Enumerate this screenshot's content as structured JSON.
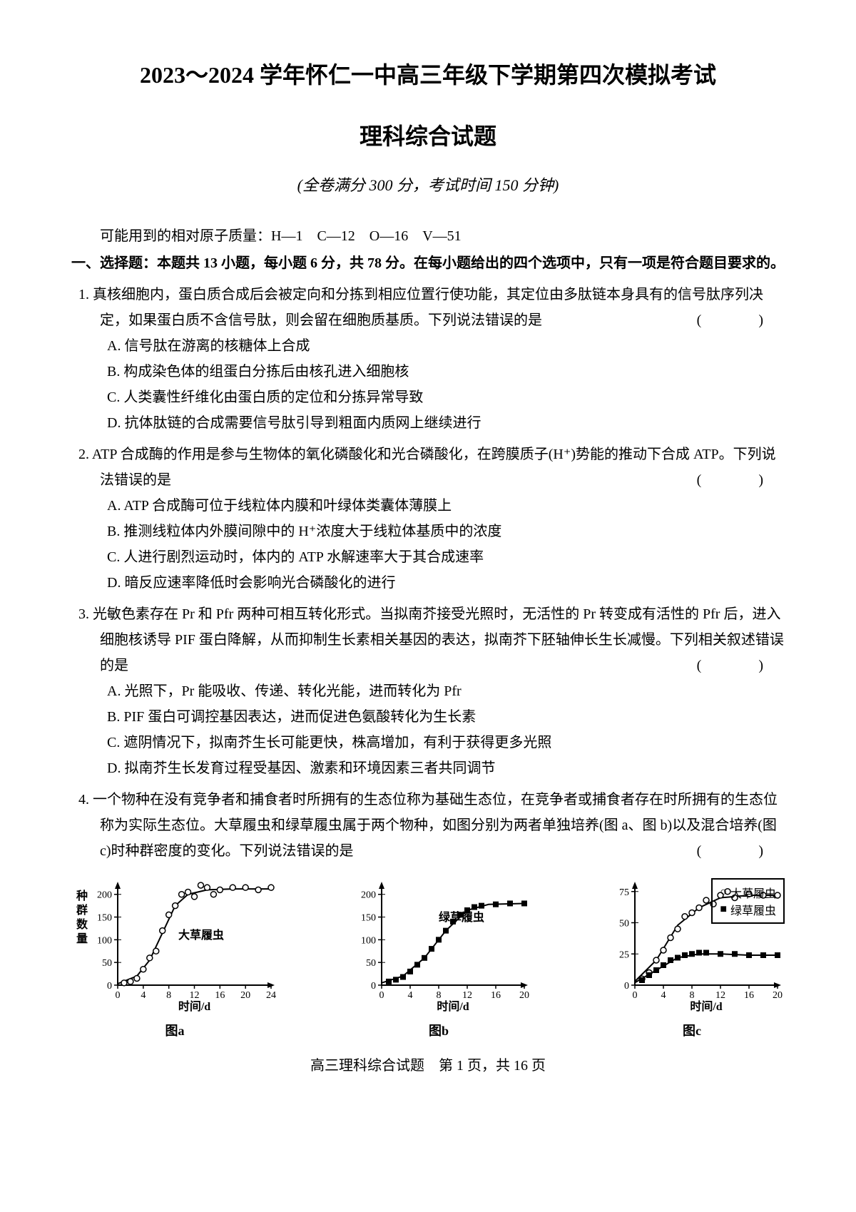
{
  "header": {
    "title": "2023～2024 学年怀仁一中高三年级下学期第四次模拟考试",
    "subtitle": "理科综合试题",
    "info": "(全卷满分 300 分，考试时间 150 分钟)"
  },
  "atomic_mass": "可能用到的相对原子质量：H—1　C—12　O—16　V—51",
  "section_header": "一、选择题：本题共 13 小题，每小题 6 分，共 78 分。在每小题给出的四个选项中，只有一项是符合题目要求的。",
  "questions": [
    {
      "num": "1.",
      "stem": "真核细胞内，蛋白质合成后会被定向和分拣到相应位置行使功能，其定位由多肽链本身具有的信号肽序列决定，如果蛋白质不含信号肽，则会留在细胞质基质。下列说法错误的是",
      "has_paren": true,
      "options": [
        "A. 信号肽在游离的核糖体上合成",
        "B. 构成染色体的组蛋白分拣后由核孔进入细胞核",
        "C. 人类囊性纤维化由蛋白质的定位和分拣异常导致",
        "D. 抗体肽链的合成需要信号肽引导到粗面内质网上继续进行"
      ]
    },
    {
      "num": "2.",
      "stem": "ATP 合成酶的作用是参与生物体的氧化磷酸化和光合磷酸化，在跨膜质子(H⁺)势能的推动下合成 ATP。下列说法错误的是",
      "has_paren": true,
      "options": [
        "A. ATP 合成酶可位于线粒体内膜和叶绿体类囊体薄膜上",
        "B. 推测线粒体内外膜间隙中的 H⁺浓度大于线粒体基质中的浓度",
        "C. 人进行剧烈运动时，体内的 ATP 水解速率大于其合成速率",
        "D. 暗反应速率降低时会影响光合磷酸化的进行"
      ]
    },
    {
      "num": "3.",
      "stem": "光敏色素存在 Pr 和 Pfr 两种可相互转化形式。当拟南芥接受光照时，无活性的 Pr 转变成有活性的 Pfr 后，进入细胞核诱导 PIF 蛋白降解，从而抑制生长素相关基因的表达，拟南芥下胚轴伸长生长减慢。下列相关叙述错误的是",
      "has_paren": true,
      "options": [
        "A. 光照下，Pr 能吸收、传递、转化光能，进而转化为 Pfr",
        "B. PIF 蛋白可调控基因表达，进而促进色氨酸转化为生长素",
        "C. 遮阴情况下，拟南芥生长可能更快，株高增加，有利于获得更多光照",
        "D. 拟南芥生长发育过程受基因、激素和环境因素三者共同调节"
      ]
    },
    {
      "num": "4.",
      "stem": "一个物种在没有竞争者和捕食者时所拥有的生态位称为基础生态位，在竞争者或捕食者存在时所拥有的生态位称为实际生态位。大草履虫和绿草履虫属于两个物种，如图分别为两者单独培养(图 a、图 b)以及混合培养(图 c)时种群密度的变化。下列说法错误的是",
      "has_paren": true,
      "options": []
    }
  ],
  "charts": {
    "legend": {
      "item1": "大草履虫",
      "item2": "绿草履虫",
      "border_color": "#000000",
      "circle_marker": "○",
      "square_marker": "■"
    },
    "chart_a": {
      "type": "scatter-line",
      "title": "图a",
      "series_label": "大草履虫",
      "xlabel": "时间/d",
      "ylabel": "种群数量",
      "xlim": [
        0,
        24
      ],
      "ylim": [
        0,
        220
      ],
      "xticks": [
        0,
        4,
        8,
        12,
        16,
        20,
        24
      ],
      "yticks": [
        0,
        50,
        100,
        150,
        200
      ],
      "background_color": "#ffffff",
      "line_color": "#000000",
      "marker_color": "#000000",
      "marker_style": "circle-open",
      "marker_size": 4,
      "line_width": 2,
      "points": [
        {
          "x": 1,
          "y": 5
        },
        {
          "x": 2,
          "y": 8
        },
        {
          "x": 3,
          "y": 15
        },
        {
          "x": 4,
          "y": 35
        },
        {
          "x": 5,
          "y": 60
        },
        {
          "x": 6,
          "y": 75
        },
        {
          "x": 7,
          "y": 120
        },
        {
          "x": 8,
          "y": 155
        },
        {
          "x": 9,
          "y": 175
        },
        {
          "x": 10,
          "y": 200
        },
        {
          "x": 11,
          "y": 205
        },
        {
          "x": 12,
          "y": 195
        },
        {
          "x": 13,
          "y": 220
        },
        {
          "x": 14,
          "y": 215
        },
        {
          "x": 15,
          "y": 200
        },
        {
          "x": 16,
          "y": 210
        },
        {
          "x": 18,
          "y": 215
        },
        {
          "x": 20,
          "y": 215
        },
        {
          "x": 22,
          "y": 210
        },
        {
          "x": 24,
          "y": 215
        }
      ],
      "curve": [
        {
          "x": 0,
          "y": 3
        },
        {
          "x": 3,
          "y": 20
        },
        {
          "x": 5,
          "y": 55
        },
        {
          "x": 7,
          "y": 115
        },
        {
          "x": 9,
          "y": 175
        },
        {
          "x": 11,
          "y": 200
        },
        {
          "x": 14,
          "y": 210
        },
        {
          "x": 18,
          "y": 212
        },
        {
          "x": 24,
          "y": 212
        }
      ]
    },
    "chart_b": {
      "type": "scatter-line",
      "title": "图b",
      "series_label": "绿草履虫",
      "xlabel": "时间/d",
      "xlim": [
        0,
        20
      ],
      "ylim": [
        0,
        220
      ],
      "xticks": [
        0,
        4,
        8,
        12,
        16,
        20
      ],
      "yticks": [
        0,
        50,
        100,
        150,
        200
      ],
      "background_color": "#ffffff",
      "line_color": "#000000",
      "marker_color": "#000000",
      "marker_style": "square-filled",
      "marker_size": 4,
      "line_width": 2,
      "points": [
        {
          "x": 1,
          "y": 8
        },
        {
          "x": 2,
          "y": 12
        },
        {
          "x": 3,
          "y": 18
        },
        {
          "x": 4,
          "y": 30
        },
        {
          "x": 5,
          "y": 45
        },
        {
          "x": 6,
          "y": 60
        },
        {
          "x": 7,
          "y": 80
        },
        {
          "x": 8,
          "y": 100
        },
        {
          "x": 9,
          "y": 120
        },
        {
          "x": 10,
          "y": 140
        },
        {
          "x": 11,
          "y": 155
        },
        {
          "x": 12,
          "y": 165
        },
        {
          "x": 13,
          "y": 172
        },
        {
          "x": 14,
          "y": 175
        },
        {
          "x": 16,
          "y": 178
        },
        {
          "x": 18,
          "y": 180
        },
        {
          "x": 20,
          "y": 180
        }
      ],
      "curve": [
        {
          "x": 0,
          "y": 5
        },
        {
          "x": 3,
          "y": 20
        },
        {
          "x": 6,
          "y": 60
        },
        {
          "x": 9,
          "y": 120
        },
        {
          "x": 12,
          "y": 165
        },
        {
          "x": 15,
          "y": 178
        },
        {
          "x": 20,
          "y": 180
        }
      ]
    },
    "chart_c": {
      "type": "scatter-line",
      "title": "图c",
      "xlabel": "时间/d",
      "xlim": [
        0,
        20
      ],
      "ylim": [
        0,
        80
      ],
      "xticks": [
        0,
        4,
        8,
        12,
        16,
        20
      ],
      "yticks": [
        0,
        25,
        50,
        75
      ],
      "background_color": "#ffffff",
      "line_color": "#000000",
      "line_width": 2,
      "series1": {
        "marker_style": "circle-open",
        "marker_size": 4,
        "points": [
          {
            "x": 1,
            "y": 5
          },
          {
            "x": 2,
            "y": 10
          },
          {
            "x": 3,
            "y": 20
          },
          {
            "x": 4,
            "y": 28
          },
          {
            "x": 5,
            "y": 38
          },
          {
            "x": 6,
            "y": 45
          },
          {
            "x": 7,
            "y": 55
          },
          {
            "x": 8,
            "y": 58
          },
          {
            "x": 9,
            "y": 62
          },
          {
            "x": 10,
            "y": 68
          },
          {
            "x": 11,
            "y": 65
          },
          {
            "x": 12,
            "y": 72
          },
          {
            "x": 13,
            "y": 75
          },
          {
            "x": 14,
            "y": 70
          },
          {
            "x": 16,
            "y": 73
          },
          {
            "x": 18,
            "y": 72
          },
          {
            "x": 20,
            "y": 72
          }
        ],
        "curve": [
          {
            "x": 0,
            "y": 3
          },
          {
            "x": 3,
            "y": 20
          },
          {
            "x": 6,
            "y": 48
          },
          {
            "x": 9,
            "y": 62
          },
          {
            "x": 12,
            "y": 70
          },
          {
            "x": 16,
            "y": 72
          },
          {
            "x": 20,
            "y": 72
          }
        ]
      },
      "series2": {
        "marker_style": "square-filled",
        "marker_size": 4,
        "points": [
          {
            "x": 1,
            "y": 4
          },
          {
            "x": 2,
            "y": 8
          },
          {
            "x": 3,
            "y": 12
          },
          {
            "x": 4,
            "y": 16
          },
          {
            "x": 5,
            "y": 20
          },
          {
            "x": 6,
            "y": 22
          },
          {
            "x": 7,
            "y": 24
          },
          {
            "x": 8,
            "y": 25
          },
          {
            "x": 9,
            "y": 26
          },
          {
            "x": 10,
            "y": 26
          },
          {
            "x": 12,
            "y": 25
          },
          {
            "x": 14,
            "y": 25
          },
          {
            "x": 16,
            "y": 24
          },
          {
            "x": 18,
            "y": 24
          },
          {
            "x": 20,
            "y": 24
          }
        ],
        "curve": [
          {
            "x": 0,
            "y": 2
          },
          {
            "x": 3,
            "y": 12
          },
          {
            "x": 6,
            "y": 22
          },
          {
            "x": 9,
            "y": 25
          },
          {
            "x": 12,
            "y": 25
          },
          {
            "x": 16,
            "y": 24
          },
          {
            "x": 20,
            "y": 24
          }
        ]
      }
    }
  },
  "footer": "高三理科综合试题　第 1 页，共 16 页"
}
